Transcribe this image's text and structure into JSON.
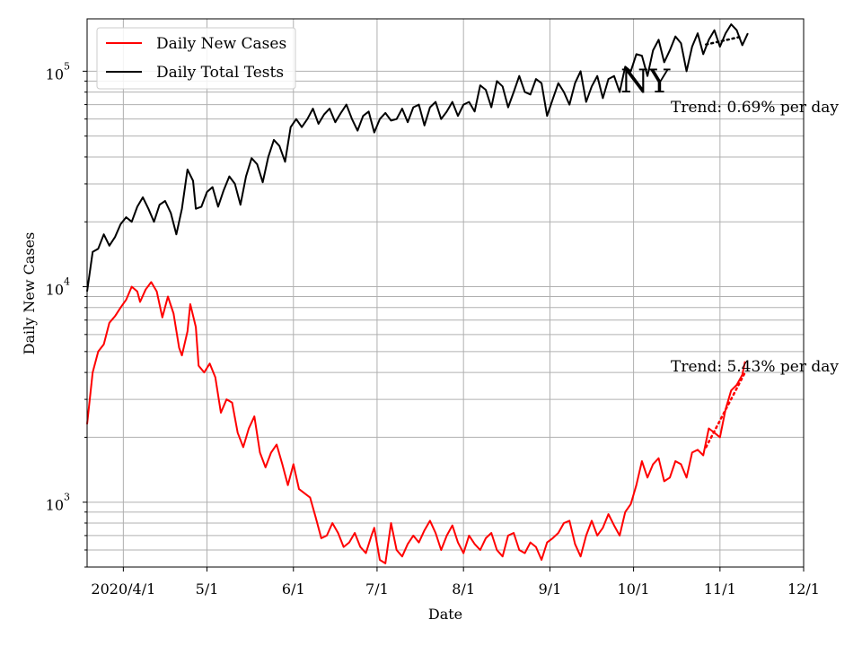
{
  "chart_data": {
    "type": "line",
    "title": "",
    "xlabel": "Date",
    "ylabel": "Daily New Cases",
    "y_scale": "log",
    "ylim": [
      500,
      175000
    ],
    "xlim": [
      "2020-03-19",
      "2020-12-01"
    ],
    "grid": true,
    "legend_position": "top-left",
    "x_ticks": [
      {
        "date": "2020-04-01",
        "label": "2020/4/1"
      },
      {
        "date": "2020-05-01",
        "label": "5/1"
      },
      {
        "date": "2020-06-01",
        "label": "6/1"
      },
      {
        "date": "2020-07-01",
        "label": "7/1"
      },
      {
        "date": "2020-08-01",
        "label": "8/1"
      },
      {
        "date": "2020-09-01",
        "label": "9/1"
      },
      {
        "date": "2020-10-01",
        "label": "10/1"
      },
      {
        "date": "2020-11-01",
        "label": "11/1"
      },
      {
        "date": "2020-12-01",
        "label": "12/1"
      }
    ],
    "y_ticks": [
      {
        "value": 1000,
        "base": "10",
        "exp": "3"
      },
      {
        "value": 10000,
        "base": "10",
        "exp": "4"
      },
      {
        "value": 100000,
        "base": "10",
        "exp": "5"
      }
    ],
    "series": [
      {
        "name": "Daily New Cases",
        "color": "#ff0000",
        "points": [
          [
            "2020-03-19",
            2300
          ],
          [
            "2020-03-21",
            4000
          ],
          [
            "2020-03-23",
            5000
          ],
          [
            "2020-03-25",
            5400
          ],
          [
            "2020-03-27",
            6800
          ],
          [
            "2020-03-29",
            7300
          ],
          [
            "2020-03-31",
            8000
          ],
          [
            "2020-04-02",
            8700
          ],
          [
            "2020-04-04",
            10000
          ],
          [
            "2020-04-06",
            9500
          ],
          [
            "2020-04-07",
            8500
          ],
          [
            "2020-04-09",
            9700
          ],
          [
            "2020-04-11",
            10500
          ],
          [
            "2020-04-13",
            9500
          ],
          [
            "2020-04-15",
            7200
          ],
          [
            "2020-04-17",
            9000
          ],
          [
            "2020-04-19",
            7500
          ],
          [
            "2020-04-21",
            5200
          ],
          [
            "2020-04-22",
            4800
          ],
          [
            "2020-04-24",
            6200
          ],
          [
            "2020-04-25",
            8300
          ],
          [
            "2020-04-27",
            6500
          ],
          [
            "2020-04-28",
            4300
          ],
          [
            "2020-04-30",
            4000
          ],
          [
            "2020-05-02",
            4400
          ],
          [
            "2020-05-04",
            3800
          ],
          [
            "2020-05-06",
            2600
          ],
          [
            "2020-05-08",
            3000
          ],
          [
            "2020-05-10",
            2900
          ],
          [
            "2020-05-12",
            2100
          ],
          [
            "2020-05-14",
            1800
          ],
          [
            "2020-05-16",
            2200
          ],
          [
            "2020-05-18",
            2500
          ],
          [
            "2020-05-20",
            1700
          ],
          [
            "2020-05-22",
            1450
          ],
          [
            "2020-05-24",
            1700
          ],
          [
            "2020-05-26",
            1850
          ],
          [
            "2020-05-28",
            1500
          ],
          [
            "2020-05-30",
            1200
          ],
          [
            "2020-06-01",
            1500
          ],
          [
            "2020-06-03",
            1150
          ],
          [
            "2020-06-05",
            1100
          ],
          [
            "2020-06-07",
            1050
          ],
          [
            "2020-06-09",
            850
          ],
          [
            "2020-06-11",
            680
          ],
          [
            "2020-06-13",
            700
          ],
          [
            "2020-06-15",
            800
          ],
          [
            "2020-06-17",
            720
          ],
          [
            "2020-06-19",
            620
          ],
          [
            "2020-06-21",
            650
          ],
          [
            "2020-06-23",
            720
          ],
          [
            "2020-06-25",
            620
          ],
          [
            "2020-06-27",
            580
          ],
          [
            "2020-06-29",
            700
          ],
          [
            "2020-06-30",
            760
          ],
          [
            "2020-07-02",
            540
          ],
          [
            "2020-07-04",
            520
          ],
          [
            "2020-07-06",
            800
          ],
          [
            "2020-07-08",
            600
          ],
          [
            "2020-07-10",
            560
          ],
          [
            "2020-07-12",
            640
          ],
          [
            "2020-07-14",
            700
          ],
          [
            "2020-07-16",
            650
          ],
          [
            "2020-07-18",
            740
          ],
          [
            "2020-07-20",
            820
          ],
          [
            "2020-07-22",
            720
          ],
          [
            "2020-07-24",
            600
          ],
          [
            "2020-07-26",
            700
          ],
          [
            "2020-07-28",
            780
          ],
          [
            "2020-07-30",
            650
          ],
          [
            "2020-08-01",
            580
          ],
          [
            "2020-08-03",
            700
          ],
          [
            "2020-08-05",
            640
          ],
          [
            "2020-08-07",
            600
          ],
          [
            "2020-08-09",
            680
          ],
          [
            "2020-08-11",
            720
          ],
          [
            "2020-08-13",
            600
          ],
          [
            "2020-08-15",
            560
          ],
          [
            "2020-08-17",
            700
          ],
          [
            "2020-08-19",
            720
          ],
          [
            "2020-08-21",
            600
          ],
          [
            "2020-08-23",
            580
          ],
          [
            "2020-08-25",
            650
          ],
          [
            "2020-08-27",
            620
          ],
          [
            "2020-08-29",
            540
          ],
          [
            "2020-08-31",
            650
          ],
          [
            "2020-09-02",
            680
          ],
          [
            "2020-09-04",
            720
          ],
          [
            "2020-09-06",
            800
          ],
          [
            "2020-09-08",
            820
          ],
          [
            "2020-09-10",
            640
          ],
          [
            "2020-09-12",
            560
          ],
          [
            "2020-09-14",
            700
          ],
          [
            "2020-09-16",
            820
          ],
          [
            "2020-09-18",
            700
          ],
          [
            "2020-09-20",
            760
          ],
          [
            "2020-09-22",
            880
          ],
          [
            "2020-09-24",
            780
          ],
          [
            "2020-09-26",
            700
          ],
          [
            "2020-09-28",
            900
          ],
          [
            "2020-09-30",
            980
          ],
          [
            "2020-10-02",
            1200
          ],
          [
            "2020-10-04",
            1550
          ],
          [
            "2020-10-06",
            1300
          ],
          [
            "2020-10-08",
            1500
          ],
          [
            "2020-10-10",
            1600
          ],
          [
            "2020-10-12",
            1250
          ],
          [
            "2020-10-14",
            1300
          ],
          [
            "2020-10-16",
            1550
          ],
          [
            "2020-10-18",
            1500
          ],
          [
            "2020-10-20",
            1300
          ],
          [
            "2020-10-22",
            1700
          ],
          [
            "2020-10-24",
            1750
          ],
          [
            "2020-10-26",
            1650
          ],
          [
            "2020-10-28",
            2200
          ],
          [
            "2020-10-30",
            2100
          ],
          [
            "2020-11-01",
            2000
          ],
          [
            "2020-11-03",
            2700
          ],
          [
            "2020-11-05",
            3300
          ],
          [
            "2020-11-07",
            3500
          ],
          [
            "2020-11-09",
            3900
          ],
          [
            "2020-11-10",
            4500
          ]
        ]
      },
      {
        "name": "Daily Total Tests",
        "color": "#000000",
        "points": [
          [
            "2020-03-19",
            9500
          ],
          [
            "2020-03-21",
            14500
          ],
          [
            "2020-03-23",
            15000
          ],
          [
            "2020-03-25",
            17500
          ],
          [
            "2020-03-27",
            15500
          ],
          [
            "2020-03-29",
            17000
          ],
          [
            "2020-03-31",
            19500
          ],
          [
            "2020-04-02",
            21000
          ],
          [
            "2020-04-04",
            20000
          ],
          [
            "2020-04-06",
            23500
          ],
          [
            "2020-04-08",
            26000
          ],
          [
            "2020-04-10",
            23000
          ],
          [
            "2020-04-12",
            20000
          ],
          [
            "2020-04-14",
            24000
          ],
          [
            "2020-04-16",
            25000
          ],
          [
            "2020-04-18",
            22000
          ],
          [
            "2020-04-20",
            17500
          ],
          [
            "2020-04-22",
            23000
          ],
          [
            "2020-04-24",
            35000
          ],
          [
            "2020-04-26",
            31000
          ],
          [
            "2020-04-27",
            23000
          ],
          [
            "2020-04-29",
            23500
          ],
          [
            "2020-05-01",
            27500
          ],
          [
            "2020-05-03",
            29000
          ],
          [
            "2020-05-05",
            23500
          ],
          [
            "2020-05-07",
            28000
          ],
          [
            "2020-05-09",
            32500
          ],
          [
            "2020-05-11",
            30000
          ],
          [
            "2020-05-13",
            24000
          ],
          [
            "2020-05-15",
            32500
          ],
          [
            "2020-05-17",
            39500
          ],
          [
            "2020-05-19",
            37000
          ],
          [
            "2020-05-21",
            30500
          ],
          [
            "2020-05-23",
            40000
          ],
          [
            "2020-05-25",
            48000
          ],
          [
            "2020-05-27",
            45000
          ],
          [
            "2020-05-29",
            38000
          ],
          [
            "2020-05-31",
            55000
          ],
          [
            "2020-06-02",
            60000
          ],
          [
            "2020-06-04",
            55000
          ],
          [
            "2020-06-06",
            60000
          ],
          [
            "2020-06-08",
            67000
          ],
          [
            "2020-06-10",
            57000
          ],
          [
            "2020-06-12",
            63000
          ],
          [
            "2020-06-14",
            67000
          ],
          [
            "2020-06-16",
            58000
          ],
          [
            "2020-06-18",
            64000
          ],
          [
            "2020-06-20",
            70000
          ],
          [
            "2020-06-22",
            60000
          ],
          [
            "2020-06-24",
            53000
          ],
          [
            "2020-06-26",
            62000
          ],
          [
            "2020-06-28",
            65000
          ],
          [
            "2020-06-30",
            52000
          ],
          [
            "2020-07-02",
            60000
          ],
          [
            "2020-07-04",
            64000
          ],
          [
            "2020-07-06",
            59000
          ],
          [
            "2020-07-08",
            60000
          ],
          [
            "2020-07-10",
            67000
          ],
          [
            "2020-07-12",
            58000
          ],
          [
            "2020-07-14",
            68000
          ],
          [
            "2020-07-16",
            70000
          ],
          [
            "2020-07-18",
            56000
          ],
          [
            "2020-07-20",
            68000
          ],
          [
            "2020-07-22",
            72000
          ],
          [
            "2020-07-24",
            60000
          ],
          [
            "2020-07-26",
            65000
          ],
          [
            "2020-07-28",
            72000
          ],
          [
            "2020-07-30",
            62000
          ],
          [
            "2020-08-01",
            70000
          ],
          [
            "2020-08-03",
            72000
          ],
          [
            "2020-08-05",
            65000
          ],
          [
            "2020-08-07",
            86000
          ],
          [
            "2020-08-09",
            82000
          ],
          [
            "2020-08-11",
            68000
          ],
          [
            "2020-08-13",
            90000
          ],
          [
            "2020-08-15",
            85000
          ],
          [
            "2020-08-17",
            68000
          ],
          [
            "2020-08-19",
            80000
          ],
          [
            "2020-08-21",
            95000
          ],
          [
            "2020-08-23",
            80000
          ],
          [
            "2020-08-25",
            78000
          ],
          [
            "2020-08-27",
            92000
          ],
          [
            "2020-08-29",
            88000
          ],
          [
            "2020-08-31",
            62000
          ],
          [
            "2020-09-02",
            74000
          ],
          [
            "2020-09-04",
            88000
          ],
          [
            "2020-09-06",
            80000
          ],
          [
            "2020-09-08",
            70000
          ],
          [
            "2020-09-10",
            88000
          ],
          [
            "2020-09-12",
            100000
          ],
          [
            "2020-09-14",
            72000
          ],
          [
            "2020-09-16",
            85000
          ],
          [
            "2020-09-18",
            95000
          ],
          [
            "2020-09-20",
            75000
          ],
          [
            "2020-09-22",
            92000
          ],
          [
            "2020-09-24",
            95000
          ],
          [
            "2020-09-26",
            80000
          ],
          [
            "2020-09-28",
            105000
          ],
          [
            "2020-09-30",
            100000
          ],
          [
            "2020-10-02",
            120000
          ],
          [
            "2020-10-04",
            118000
          ],
          [
            "2020-10-06",
            95000
          ],
          [
            "2020-10-08",
            125000
          ],
          [
            "2020-10-10",
            140000
          ],
          [
            "2020-10-12",
            110000
          ],
          [
            "2020-10-14",
            125000
          ],
          [
            "2020-10-16",
            145000
          ],
          [
            "2020-10-18",
            135000
          ],
          [
            "2020-10-20",
            100000
          ],
          [
            "2020-10-22",
            130000
          ],
          [
            "2020-10-24",
            150000
          ],
          [
            "2020-10-26",
            120000
          ],
          [
            "2020-10-28",
            140000
          ],
          [
            "2020-10-30",
            155000
          ],
          [
            "2020-11-01",
            130000
          ],
          [
            "2020-11-03",
            150000
          ],
          [
            "2020-11-05",
            165000
          ],
          [
            "2020-11-07",
            155000
          ],
          [
            "2020-11-09",
            132000
          ],
          [
            "2020-11-11",
            150000
          ]
        ]
      }
    ],
    "trend_lines": [
      {
        "series": "Daily New Cases",
        "color": "#ff0000",
        "start": [
          "2020-10-27",
          1800
        ],
        "end": [
          "2020-11-10",
          4000
        ]
      },
      {
        "series": "Daily Total Tests",
        "color": "#000000",
        "start": [
          "2020-10-27",
          133000
        ],
        "end": [
          "2020-11-09",
          145000
        ]
      }
    ],
    "annotations": {
      "state": "NY",
      "trend_tests": "Trend: 0.69% per day",
      "trend_cases": "Trend: 5.43% per day"
    }
  }
}
